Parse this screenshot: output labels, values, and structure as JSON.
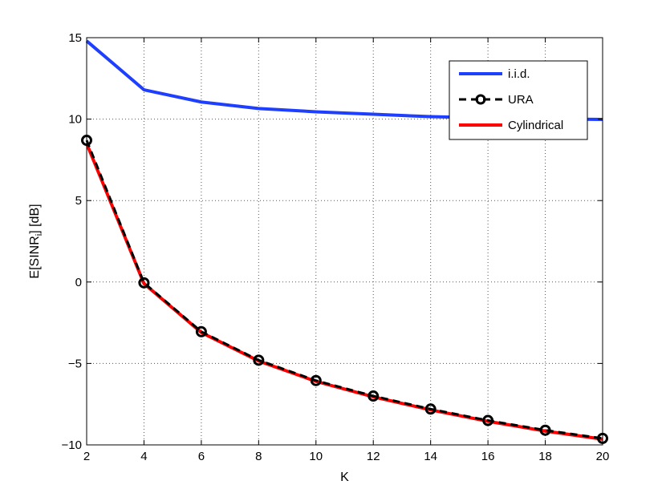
{
  "chart_data": {
    "type": "line",
    "xlabel": "K",
    "ylabel": "E[SINR",
    "ylabel_subscript": "i",
    "ylabel_suffix": "] [dB]",
    "xlim": [
      2,
      20
    ],
    "ylim": [
      -10,
      15
    ],
    "xticks": [
      2,
      4,
      6,
      8,
      10,
      12,
      14,
      16,
      18,
      20
    ],
    "yticks": [
      -10,
      -5,
      0,
      5,
      10,
      15
    ],
    "xtick_labels": [
      "2",
      "4",
      "6",
      "8",
      "10",
      "12",
      "14",
      "16",
      "18",
      "20"
    ],
    "ytick_labels": [
      "−10",
      "−5",
      "0",
      "5",
      "10",
      "15"
    ],
    "grid": true,
    "legend_position": "top-right",
    "x": [
      2,
      4,
      6,
      8,
      10,
      12,
      14,
      16,
      18,
      20
    ],
    "series": [
      {
        "name": "i.i.d.",
        "color": "#1f3fff",
        "style": "solid",
        "marker": "none",
        "values": [
          14.8,
          11.8,
          11.05,
          10.65,
          10.45,
          10.3,
          10.15,
          10.07,
          10.02,
          9.98
        ]
      },
      {
        "name": "URA",
        "color": "#000000",
        "style": "dashed",
        "marker": "circle",
        "values": [
          8.7,
          -0.05,
          -3.05,
          -4.8,
          -6.05,
          -7.0,
          -7.8,
          -8.5,
          -9.1,
          -9.6
        ]
      },
      {
        "name": "Cylindrical",
        "color": "#ff0000",
        "style": "solid",
        "marker": "none",
        "values": [
          8.5,
          -0.1,
          -3.1,
          -4.85,
          -6.1,
          -7.05,
          -7.85,
          -8.55,
          -9.15,
          -9.65
        ]
      }
    ]
  }
}
